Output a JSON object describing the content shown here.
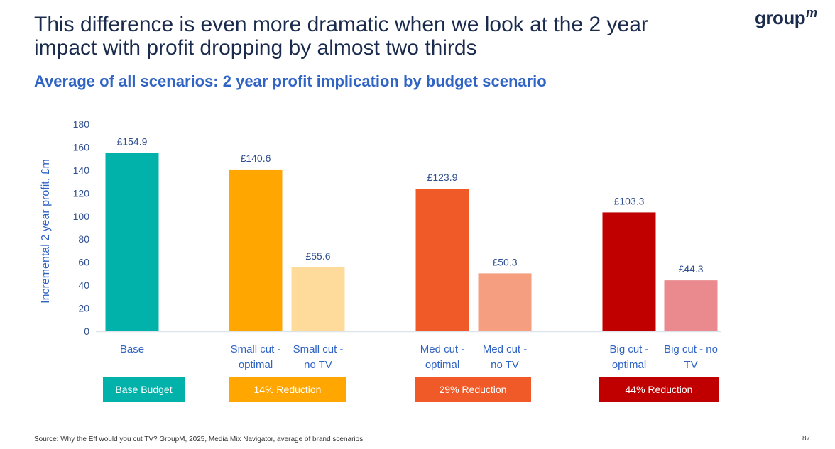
{
  "header": {
    "title": "This difference is even more dramatic when we look at the 2 year impact with profit dropping by almost two thirds",
    "subtitle": "Average of all scenarios: 2 year profit implication by budget scenario",
    "logo": "group",
    "logo_sup": "m"
  },
  "footer": {
    "source": "Source: Why the Eff would you cut TV? GroupM, 2025, Media Mix Navigator, average of brand scenarios",
    "page_number": "87"
  },
  "colors": {
    "text_dark": "#1b2b4d",
    "text_blue": "#2f63c4",
    "axis_text": "#2f4f8f"
  },
  "chart_data": {
    "type": "bar",
    "title": "Average of all scenarios: 2 year profit implication by budget scenario",
    "xlabel": "",
    "ylabel": "Incremental 2 year profit, £m",
    "ylim": [
      0,
      180
    ],
    "yticks": [
      0,
      20,
      40,
      60,
      80,
      100,
      120,
      140,
      160,
      180
    ],
    "grid": false,
    "categories": [
      [
        "Base"
      ],
      [
        "Small cut -",
        "optimal"
      ],
      [
        "Small cut -",
        "no TV"
      ],
      [
        "Med cut -",
        "optimal"
      ],
      [
        "Med cut -",
        "no TV"
      ],
      [
        "Big cut -",
        "optimal"
      ],
      [
        "Big cut - no",
        "TV"
      ]
    ],
    "values": [
      154.9,
      140.6,
      55.6,
      123.9,
      50.3,
      103.3,
      44.3
    ],
    "data_labels": [
      "£154.9",
      "£140.6",
      "£55.6",
      "£123.9",
      "£50.3",
      "£103.3",
      "£44.3"
    ],
    "bar_colors": [
      "#00b2a9",
      "#ffa600",
      "#ffdb9b",
      "#f05a28",
      "#f59e80",
      "#c00000",
      "#ea8a8f"
    ],
    "groups": [
      {
        "label": "Base Budget",
        "color": "#00b2a9",
        "bars": [
          0
        ]
      },
      {
        "label": "14% Reduction",
        "color": "#ffa600",
        "bars": [
          1,
          2
        ]
      },
      {
        "label": "29% Reduction",
        "color": "#f05a28",
        "bars": [
          3,
          4
        ]
      },
      {
        "label": "44% Reduction",
        "color": "#c00000",
        "bars": [
          5,
          6
        ]
      }
    ]
  }
}
